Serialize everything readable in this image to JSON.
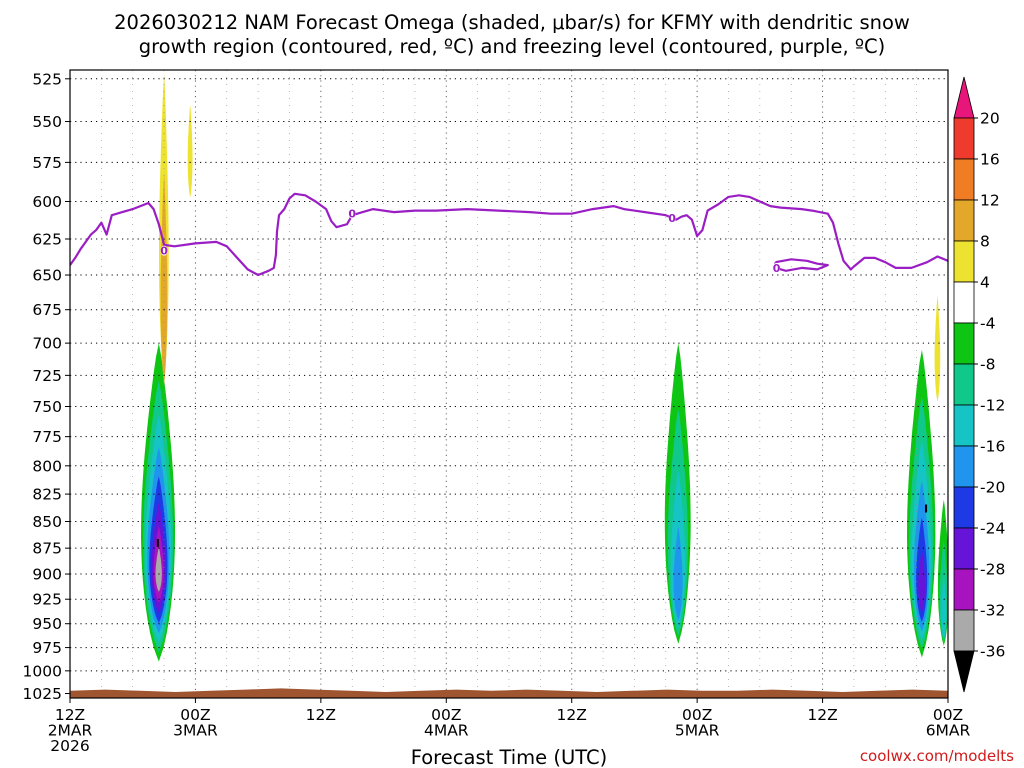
{
  "chart_data": {
    "type": "time-height cross section",
    "title_line1": "2026030212 NAM Forecast Omega (shaded, μbar/s) for KFMY with dendritic snow",
    "title_line2": "growth region (contoured, red, ºC) and freezing level (contoured, purple, ºC)",
    "xlabel": "Forecast Time (UTC)",
    "credit": "coolwx.com/modelts",
    "xlim_hours": [
      0,
      84
    ],
    "ylim_hpa": [
      1030,
      520
    ],
    "y_ticks": [
      525,
      550,
      575,
      600,
      625,
      650,
      675,
      700,
      725,
      750,
      775,
      800,
      825,
      850,
      875,
      900,
      925,
      950,
      975,
      1000,
      1025
    ],
    "x_ticks": [
      {
        "hour": 0,
        "lines": [
          "12Z",
          "2MAR",
          "2026"
        ]
      },
      {
        "hour": 12,
        "lines": [
          "00Z",
          "3MAR"
        ]
      },
      {
        "hour": 24,
        "lines": [
          "12Z"
        ]
      },
      {
        "hour": 36,
        "lines": [
          "00Z",
          "4MAR"
        ]
      },
      {
        "hour": 48,
        "lines": [
          "12Z"
        ]
      },
      {
        "hour": 60,
        "lines": [
          "00Z",
          "5MAR"
        ]
      },
      {
        "hour": 72,
        "lines": [
          "12Z"
        ]
      },
      {
        "hour": 84,
        "lines": [
          "00Z",
          "6MAR"
        ]
      }
    ],
    "colorbar": {
      "levels": [
        20,
        16,
        12,
        8,
        4,
        -4,
        -8,
        -12,
        -16,
        -20,
        -24,
        -28,
        -32,
        -36
      ],
      "colors_top_to_bottom": [
        "#e8157a",
        "#ee3b2e",
        "#f07d24",
        "#e3a82a",
        "#ece22f",
        "#ffffff",
        "#0fc514",
        "#10c88a",
        "#16c3c5",
        "#2095ee",
        "#1d3ae5",
        "#6614d7",
        "#a813c0",
        "#aaaaaa",
        "#000000"
      ]
    },
    "freezing_level_hpa": [
      [
        0,
        643
      ],
      [
        0.5,
        638
      ],
      [
        1,
        632
      ],
      [
        1.5,
        627
      ],
      [
        2,
        622
      ],
      [
        2.5,
        619
      ],
      [
        3,
        614
      ],
      [
        3.5,
        622
      ],
      [
        4,
        609
      ],
      [
        5,
        607
      ],
      [
        6,
        605
      ],
      [
        7.5,
        601
      ],
      [
        8,
        605
      ],
      [
        8.5,
        615
      ],
      [
        9,
        629
      ],
      [
        10,
        630
      ],
      [
        12,
        628
      ],
      [
        14,
        627
      ],
      [
        15,
        630
      ],
      [
        16,
        638
      ],
      [
        17,
        646
      ],
      [
        18,
        650
      ],
      [
        19,
        647
      ],
      [
        19.5,
        645
      ],
      [
        19.7,
        636
      ],
      [
        19.8,
        620
      ],
      [
        20,
        609
      ],
      [
        20.5,
        605
      ],
      [
        21,
        598
      ],
      [
        21.5,
        595
      ],
      [
        22.5,
        596
      ],
      [
        23.5,
        600
      ],
      [
        24.5,
        605
      ],
      [
        25,
        613
      ],
      [
        25.5,
        617
      ],
      [
        26.5,
        615
      ],
      [
        27,
        609
      ],
      [
        28,
        607
      ],
      [
        29,
        605
      ],
      [
        31,
        607
      ],
      [
        33,
        606
      ],
      [
        35,
        606
      ],
      [
        38,
        605
      ],
      [
        41,
        606
      ],
      [
        44,
        607
      ],
      [
        46,
        608
      ],
      [
        48,
        608
      ],
      [
        50,
        605
      ],
      [
        51,
        604
      ],
      [
        52,
        603
      ],
      [
        53,
        605
      ],
      [
        55,
        607
      ],
      [
        57,
        609
      ],
      [
        58,
        612
      ],
      [
        58.5,
        610
      ],
      [
        59,
        609
      ],
      [
        59.5,
        612
      ],
      [
        60,
        623
      ],
      [
        60.5,
        619
      ],
      [
        61,
        606
      ],
      [
        62,
        602
      ],
      [
        63,
        597
      ],
      [
        64,
        596
      ],
      [
        65,
        597
      ],
      [
        66,
        600
      ],
      [
        67,
        603
      ],
      [
        68,
        604
      ],
      [
        70,
        605
      ],
      [
        71,
        606
      ],
      [
        72.5,
        608
      ],
      [
        73,
        614
      ],
      [
        73.5,
        628
      ],
      [
        74,
        640
      ],
      [
        74.7,
        646
      ],
      [
        75,
        644
      ],
      [
        76,
        638
      ],
      [
        77,
        638
      ],
      [
        78,
        641
      ],
      [
        79,
        645
      ],
      [
        80.5,
        645
      ],
      [
        82,
        641
      ],
      [
        83,
        637
      ],
      [
        84,
        640
      ]
    ],
    "freezing_level_island_hpa": [
      [
        67.5,
        641
      ],
      [
        69,
        639
      ],
      [
        70.5,
        640
      ],
      [
        71.5,
        642
      ],
      [
        72.5,
        643
      ],
      [
        71.5,
        646
      ],
      [
        70,
        645
      ],
      [
        68.5,
        647
      ],
      [
        67.5,
        645
      ],
      [
        67.5,
        641
      ]
    ],
    "freezing_level_labels": [
      {
        "hour": 9,
        "hpa": 633,
        "text": "0"
      },
      {
        "hour": 27,
        "hpa": 608,
        "text": "0"
      },
      {
        "hour": 57.6,
        "hpa": 611,
        "text": "0"
      },
      {
        "hour": 67.6,
        "hpa": 645,
        "text": "0"
      }
    ],
    "omega_features": [
      {
        "name": "ascent-3mar-00z",
        "hour": 8.5,
        "top_hpa": 700,
        "bottom_hpa": 1005,
        "width_hours": 4.2,
        "min_value": -34
      },
      {
        "name": "ascent-4mar-18z",
        "hour": 58.2,
        "top_hpa": 700,
        "bottom_hpa": 985,
        "width_hours": 3.2,
        "min_value": -18
      },
      {
        "name": "ascent-5mar-21z",
        "hour": 81.5,
        "top_hpa": 705,
        "bottom_hpa": 1000,
        "width_hours": 3.5,
        "min_value": -24
      },
      {
        "name": "ascent-5mar-24z",
        "hour": 83.6,
        "top_hpa": 830,
        "bottom_hpa": 980,
        "width_hours": 1.4,
        "min_value": -14
      },
      {
        "name": "descent-aloft-3mar",
        "hour": 9,
        "top_hpa": 522,
        "bottom_hpa": 740,
        "width_hours": 1.2,
        "max_value": 8
      },
      {
        "name": "descent-high-3mar",
        "hour": 11.5,
        "top_hpa": 540,
        "bottom_hpa": 600,
        "width_hours": 0.6,
        "max_value": 6
      },
      {
        "name": "descent-6mar",
        "hour": 83,
        "top_hpa": 665,
        "bottom_hpa": 750,
        "width_hours": 0.7,
        "max_value": 6
      }
    ],
    "extremum_marks": [
      {
        "hour": 8.4,
        "hpa": 870,
        "text": "I"
      },
      {
        "hour": 81.9,
        "hpa": 838,
        "text": "I"
      }
    ],
    "surface_band_hpa": [
      1022,
      1030
    ],
    "colors": {
      "freezing_level": "#9a1ec4",
      "terrain": "#9e5530",
      "credit": "#d11b1b"
    }
  }
}
